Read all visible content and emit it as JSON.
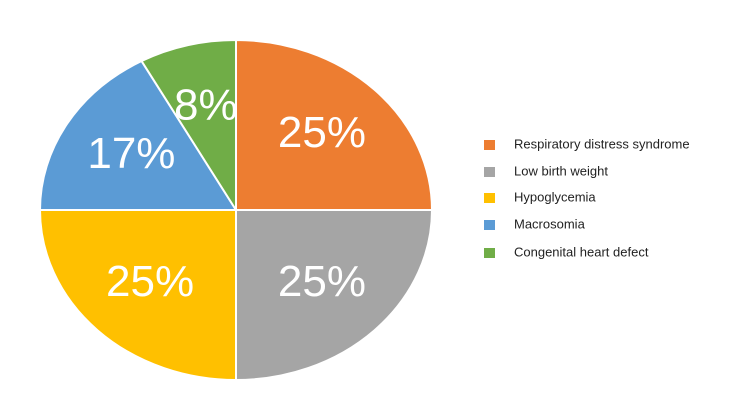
{
  "chart_data": {
    "type": "pie",
    "categories": [
      "Respiratory distress syndrome",
      "Low birth weight",
      "Hypoglycemia",
      "Macrosomia",
      "Congenital heart defect"
    ],
    "values": [
      25,
      25,
      25,
      17,
      8
    ],
    "value_labels": [
      "25%",
      "25%",
      "25%",
      "17%",
      "8%"
    ],
    "colors": [
      "#ED7D31",
      "#A5A5A5",
      "#FFC000",
      "#5B9BD5",
      "#70AD47"
    ],
    "legend": "right"
  }
}
